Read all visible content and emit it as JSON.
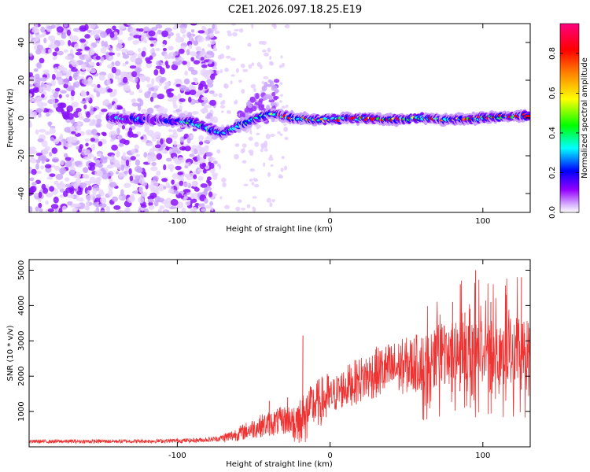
{
  "title": "C2E1.2026.097.18.25.E19",
  "chart_data": [
    {
      "type": "heatmap",
      "xlabel": "Height of straight line (km)",
      "ylabel": "Frequency (Hz)",
      "xlim": [
        -197,
        131
      ],
      "ylim": [
        -50,
        50
      ],
      "xticks": [
        -100,
        0,
        100
      ],
      "xtick_labels": [
        "-100",
        "0",
        "100"
      ],
      "yticks": [
        -40,
        -20,
        0,
        20,
        40
      ],
      "ytick_labels": [
        "-40",
        "-20",
        "0",
        "20",
        "40"
      ],
      "grid": false,
      "colorbar": {
        "label": "Normalized spectral amplitude",
        "range": [
          0,
          0.95
        ],
        "ticks": [
          0.0,
          0.2,
          0.4,
          0.6,
          0.8
        ],
        "tick_labels": [
          "0.0",
          "0.2",
          "0.4",
          "0.6",
          "0.8"
        ],
        "colormap": [
          "#ffffff",
          "#d9b3ff",
          "#9400ff",
          "#0000ff",
          "#00ffff",
          "#00ff00",
          "#ffff00",
          "#ff8000",
          "#ff0000",
          "#ff0080"
        ]
      },
      "ridge_frequency": [
        [
          -140,
          0
        ],
        [
          -110,
          -1
        ],
        [
          -90,
          -2
        ],
        [
          -80,
          -6
        ],
        [
          -70,
          -8
        ],
        [
          -60,
          -4
        ],
        [
          -50,
          -1
        ],
        [
          -40,
          2
        ],
        [
          -30,
          1
        ],
        [
          -20,
          0
        ],
        [
          0,
          -1
        ],
        [
          20,
          0
        ],
        [
          40,
          -1
        ],
        [
          60,
          0
        ],
        [
          80,
          -1
        ],
        [
          100,
          0
        ],
        [
          120,
          1
        ],
        [
          131,
          1
        ]
      ]
    },
    {
      "type": "line",
      "xlabel": "Height of straight line (km)",
      "ylabel": "SNR (10 * v/v)",
      "xlim": [
        -197,
        131
      ],
      "ylim": [
        0,
        5300
      ],
      "xticks": [
        -100,
        0,
        100
      ],
      "xtick_labels": [
        "-100",
        "0",
        "100"
      ],
      "yticks": [
        1000,
        2000,
        3000,
        4000,
        5000
      ],
      "ytick_labels": [
        "1000",
        "2000",
        "3000",
        "4000",
        "5000"
      ],
      "grid": false,
      "series_color": "#ee3333",
      "envelope": [
        [
          -197,
          150
        ],
        [
          -120,
          160
        ],
        [
          -90,
          180
        ],
        [
          -75,
          220
        ],
        [
          -65,
          300
        ],
        [
          -55,
          450
        ],
        [
          -45,
          600
        ],
        [
          -35,
          700
        ],
        [
          -25,
          800
        ],
        [
          -20,
          900
        ],
        [
          -10,
          1200
        ],
        [
          0,
          1400
        ],
        [
          10,
          1700
        ],
        [
          20,
          1900
        ],
        [
          30,
          2100
        ],
        [
          40,
          2200
        ],
        [
          60,
          2400
        ],
        [
          80,
          2600
        ],
        [
          100,
          2700
        ],
        [
          131,
          2700
        ]
      ],
      "spikes": [
        [
          -18,
          3150
        ],
        [
          -28,
          1400
        ],
        [
          -40,
          1300
        ],
        [
          80,
          4100
        ],
        [
          85,
          4600
        ],
        [
          95,
          5000
        ],
        [
          105,
          4100
        ],
        [
          115,
          4300
        ],
        [
          125,
          4800
        ],
        [
          88,
          3800
        ]
      ]
    }
  ]
}
